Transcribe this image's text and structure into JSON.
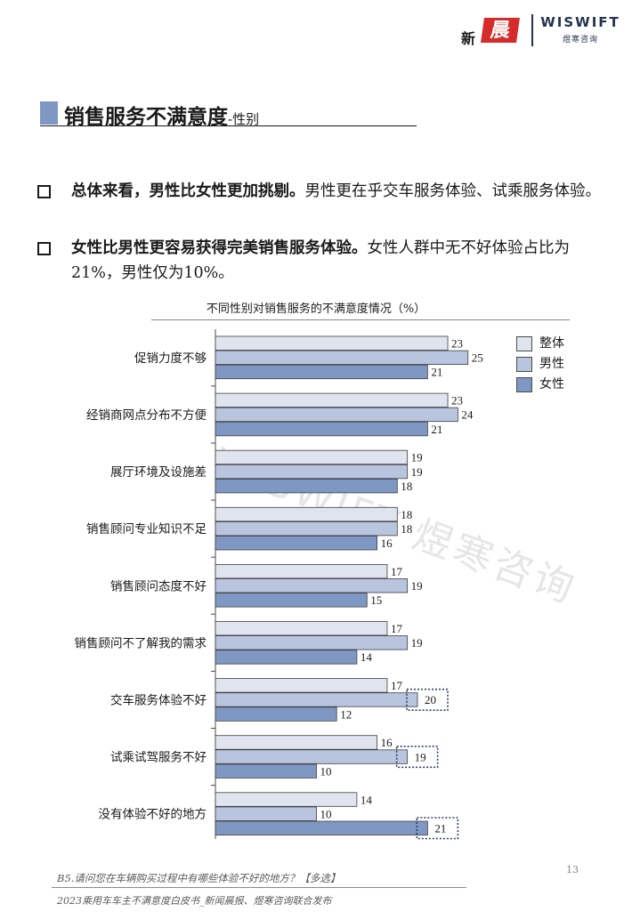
{
  "header": {
    "logo_left_small": "新",
    "logo_left_big": "晨报",
    "logo_right_en": "WISWIFT",
    "logo_right_cn": "煜寒咨询"
  },
  "section": {
    "title": "销售服务不满意度",
    "title_suffix": "-性别"
  },
  "bullets": [
    {
      "bold": "总体来看，男性比女性更加挑剔。",
      "rest": "男性更在乎交车服务体验、试乘服务体验。"
    },
    {
      "bold": "女性比男性更容易获得完美销售服务体验。",
      "rest": "女性人群中无不好体验占比为21%，男性仅为10%。"
    }
  ],
  "chart_data": {
    "type": "bar",
    "orientation": "horizontal",
    "title": "不同性别对销售服务的不满意度情况（%）",
    "categories": [
      "促销力度不够",
      "经销商网点分布不方便",
      "展厅环境及设施差",
      "销售顾问专业知识不足",
      "销售顾问态度不好",
      "销售顾问不了解我的需求",
      "交车服务体验不好",
      "试乘试驾服务不好",
      "没有体验不好的地方"
    ],
    "series": [
      {
        "name": "整体",
        "color": "#dfe4ef",
        "values": [
          23,
          23,
          19,
          18,
          17,
          17,
          17,
          16,
          14
        ]
      },
      {
        "name": "男性",
        "color": "#b9c4de",
        "values": [
          25,
          24,
          19,
          18,
          19,
          19,
          20,
          19,
          10
        ]
      },
      {
        "name": "女性",
        "color": "#7f97c3",
        "values": [
          21,
          21,
          18,
          16,
          15,
          14,
          12,
          10,
          21
        ]
      }
    ],
    "highlights": [
      {
        "category_index": 6,
        "series": "男性"
      },
      {
        "category_index": 7,
        "series": "男性"
      },
      {
        "category_index": 8,
        "series": "女性"
      }
    ],
    "xlim": [
      0,
      30
    ],
    "legend_position": "top-right",
    "grid": false
  },
  "footer": {
    "page_number": "13",
    "question": "B5.请问您在车辆购买过程中有哪些体验不好的地方？【多选】",
    "publisher": "2023乘用车车主不满意度白皮书_新闻晨报、煜寒咨询联合发布"
  },
  "watermark": "WISWIFT 煜寒咨询"
}
